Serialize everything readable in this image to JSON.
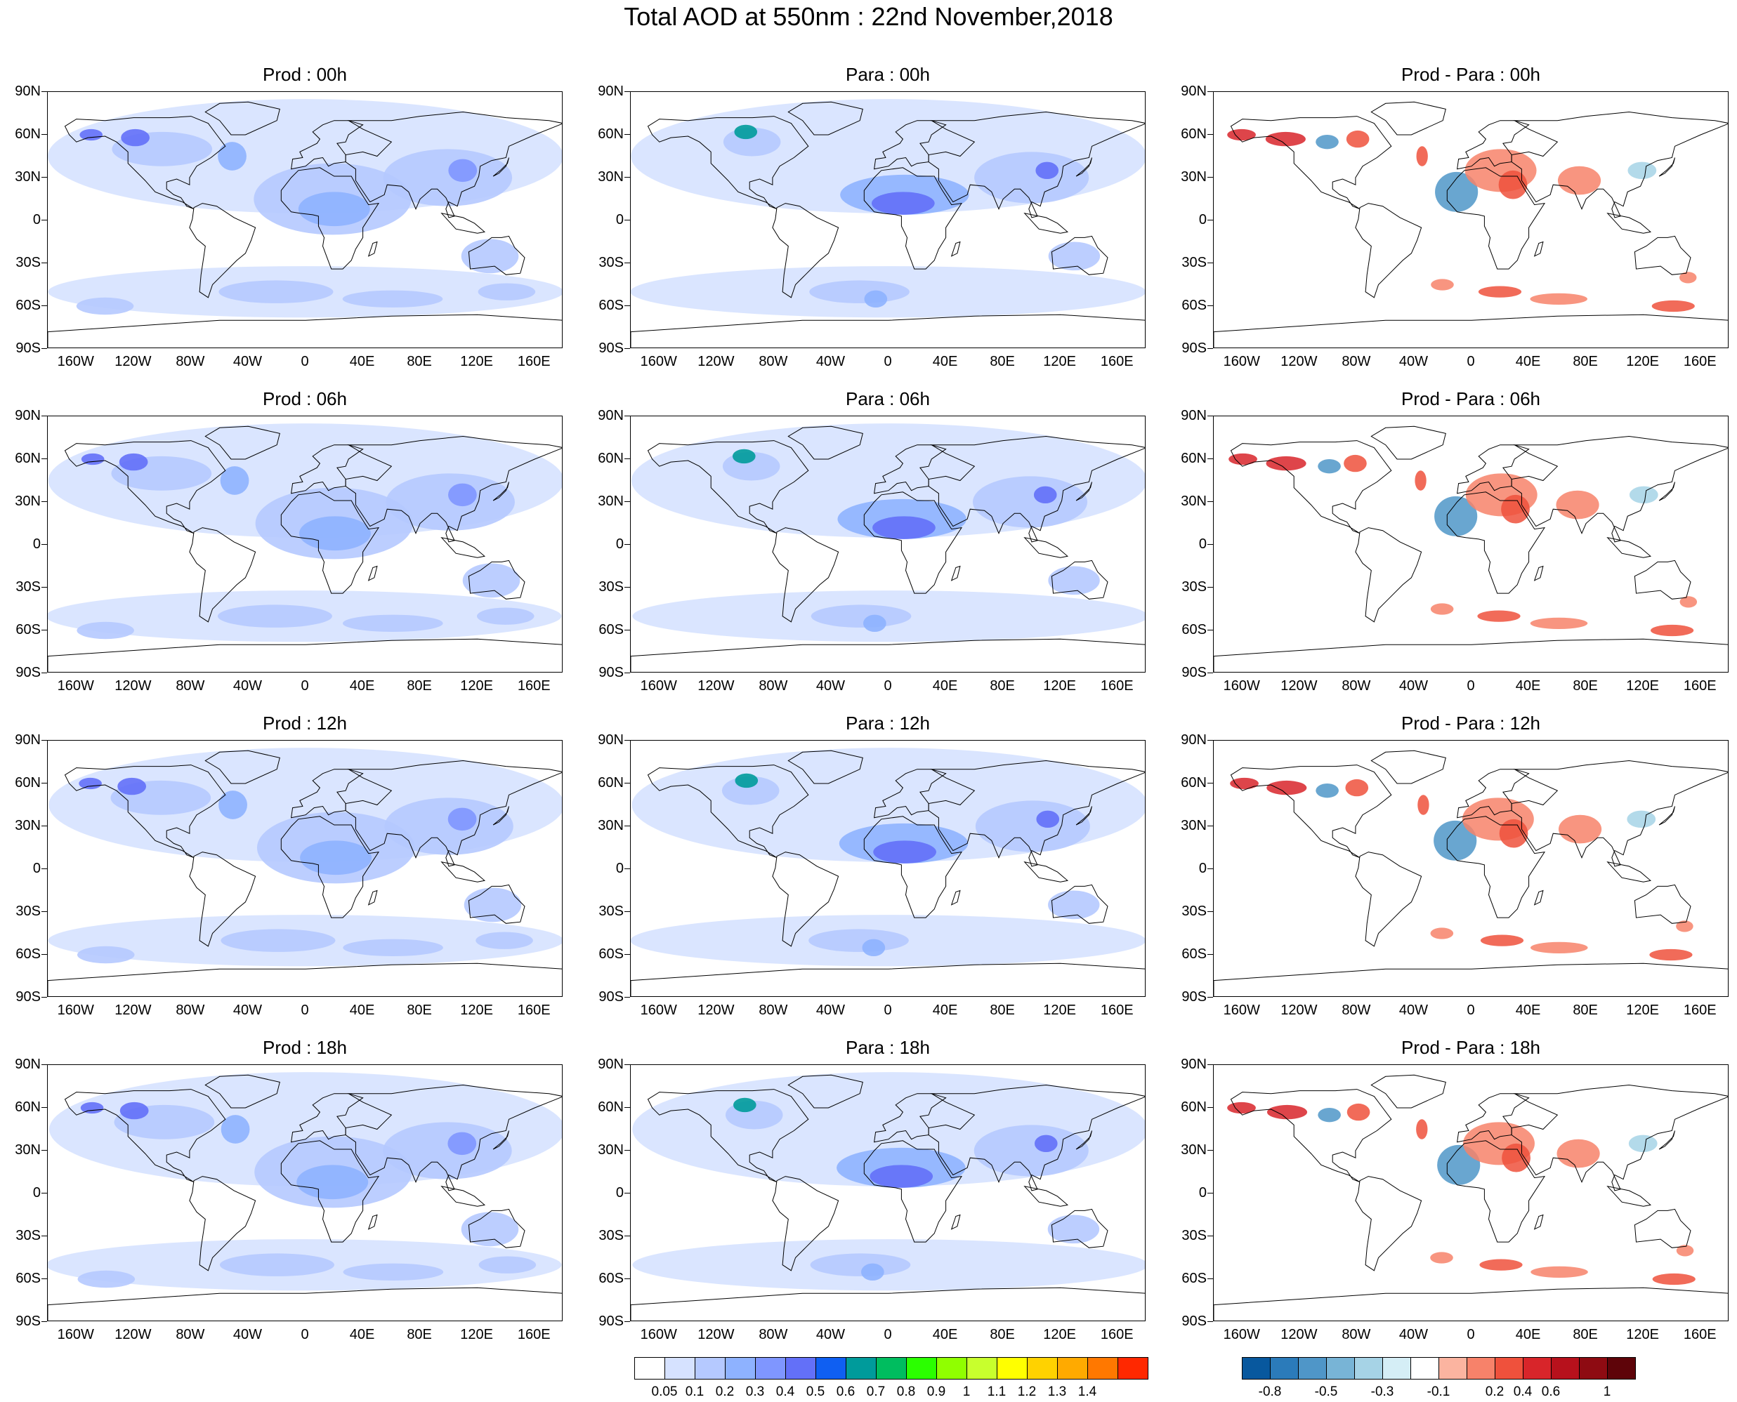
{
  "title": "Total AOD at 550nm : 22nd November,2018",
  "panels": [
    {
      "title": "Prod : 00h",
      "kind": "aod"
    },
    {
      "title": "Para : 00h",
      "kind": "aod"
    },
    {
      "title": "Prod - Para : 00h",
      "kind": "diff"
    },
    {
      "title": "Prod : 06h",
      "kind": "aod"
    },
    {
      "title": "Para : 06h",
      "kind": "aod"
    },
    {
      "title": "Prod - Para : 06h",
      "kind": "diff"
    },
    {
      "title": "Prod : 12h",
      "kind": "aod"
    },
    {
      "title": "Para : 12h",
      "kind": "aod"
    },
    {
      "title": "Prod - Para : 12h",
      "kind": "diff"
    },
    {
      "title": "Prod : 18h",
      "kind": "aod"
    },
    {
      "title": "Para : 18h",
      "kind": "aod"
    },
    {
      "title": "Prod - Para : 18h",
      "kind": "diff"
    }
  ],
  "lat_labels": [
    "90N",
    "60N",
    "30N",
    "0",
    "30S",
    "60S",
    "90S"
  ],
  "lon_labels": [
    "160W",
    "120W",
    "80W",
    "40W",
    "0",
    "40E",
    "80E",
    "120E",
    "160E"
  ],
  "aod_colorbar": {
    "labels": [
      "0.05",
      "0.1",
      "0.2",
      "0.3",
      "0.4",
      "0.5",
      "0.6",
      "0.7",
      "0.8",
      "0.9",
      "1",
      "1.1",
      "1.2",
      "1.3",
      "1.4"
    ],
    "colors": [
      "#ffffff",
      "#d6e2ff",
      "#b5c9ff",
      "#8eb2ff",
      "#7f96ff",
      "#6370f8",
      "#0f5ff2",
      "#009b9b",
      "#00bd5f",
      "#2bff00",
      "#90ff00",
      "#c8ff2d",
      "#ffff00",
      "#ffd200",
      "#ffaa00",
      "#ff7800",
      "#ff2800"
    ]
  },
  "diff_colorbar": {
    "labels": [
      "-0.8",
      "-0.5",
      "-0.3",
      "-0.1",
      "0.2",
      "0.4",
      "0.6",
      "1"
    ],
    "colors": [
      "#08589e",
      "#2b7bba",
      "#4f96c8",
      "#78b4d6",
      "#a6d3e6",
      "#d5eef6",
      "#ffffff",
      "#fbb4a0",
      "#f7826a",
      "#ef513c",
      "#d8252a",
      "#b7111c",
      "#8e0b12",
      "#5e0409"
    ]
  }
}
